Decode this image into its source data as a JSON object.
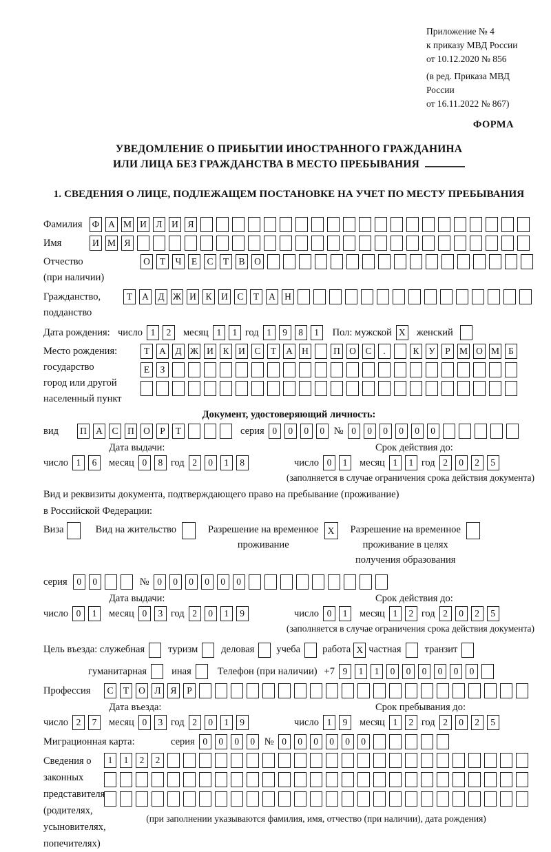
{
  "meta": {
    "appendix_line1": "Приложение № 4",
    "appendix_line2": "к приказу МВД России",
    "appendix_line3": "от 10.12.2020 № 856",
    "edition_line1": "(в ред. Приказа МВД России",
    "edition_line2": "от 16.11.2022 № 867)",
    "forma": "ФОРМА"
  },
  "title": {
    "line1": "УВЕДОМЛЕНИЕ О ПРИБЫТИИ ИНОСТРАННОГО ГРАЖДАНИНА",
    "line2": "ИЛИ ЛИЦА БЕЗ ГРАЖДАНСТВА В МЕСТО ПРЕБЫВАНИЯ"
  },
  "section1_heading": "1. СВЕДЕНИЯ О ЛИЦЕ, ПОДЛЕЖАЩЕМ ПОСТАНОВКЕ НА УЧЕТ ПО МЕСТУ ПРЕБЫВАНИЯ",
  "labels": {
    "surname": "Фамилия",
    "name": "Имя",
    "patronymic1": "Отчество",
    "patronymic2": "(при наличии)",
    "citizenship1": "Гражданство,",
    "citizenship2": "подданство",
    "birth_date": "Дата рождения:",
    "day": "число",
    "month": "месяц",
    "year": "год",
    "sex_male": "Пол: мужской",
    "sex_female": "женский",
    "birth_place1": "Место рождения:",
    "birth_place2": "государство",
    "birth_place3": "город или другой",
    "birth_place4": "населенный пункт",
    "identity_doc_heading": "Документ, удостоверяющий личность:",
    "kind": "вид",
    "series": "серия",
    "number_sign": "№",
    "issue_date": "Дата выдачи:",
    "valid_until": "Срок действия до:",
    "validity_note": "(заполняется в случае ограничения срока действия документа)",
    "right_doc_line1": "Вид и реквизиты документа, подтверждающего право на пребывание (проживание)",
    "right_doc_line2": "в Российской Федерации:",
    "visa": "Виза",
    "residence_permit": "Вид на жительство",
    "temp_res_line1": "Разрешение на временное",
    "temp_res_line2": "проживание",
    "temp_edu_line1": "Разрешение на временное",
    "temp_edu_line2": "проживание в целях",
    "temp_edu_line3": "получения образования",
    "purpose": "Цель въезда: служебная",
    "tourism": "туризм",
    "business": "деловая",
    "study": "учеба",
    "work": "работа",
    "private": "частная",
    "transit": "транзит",
    "humanitarian": "гуманитарная",
    "other": "иная",
    "phone": "Телефон (при наличии)",
    "phone_prefix": "+7",
    "profession": "Профессия",
    "entry_date": "Дата въезда:",
    "stay_until": "Срок пребывания до:",
    "migration_card": "Миграционная карта:",
    "legal1": "Сведения о",
    "legal2": "законных",
    "legal3": "представителях",
    "legal4": "(родителях,",
    "legal5": "усыновителях,",
    "legal6": "попечителях)",
    "legal_note": "(при заполнении указываются фамилия, имя, отчество (при наличии), дата рождения)"
  },
  "boxes": {
    "surname": {
      "value": "ФАМИЛИЯ",
      "count": 28
    },
    "name": {
      "value": "ИМЯ",
      "count": 28
    },
    "patronymic": {
      "value": "ОТЧЕСТВО",
      "count": 25
    },
    "citizenship": {
      "value": "ТАДЖИКИСТАН",
      "count": 26
    },
    "birth_day": {
      "value": "12",
      "count": 2
    },
    "birth_month": {
      "value": "11",
      "count": 2
    },
    "birth_year": {
      "value": "1981",
      "count": 4
    },
    "sex_male": {
      "value": "X",
      "count": 1
    },
    "sex_female": {
      "value": "",
      "count": 1
    },
    "birth_place_row1": {
      "value": "ТАДЖИКИСТАН ПОС. КУРМОМБ",
      "count": 24
    },
    "birth_place_row2": {
      "value": "ЕЗ",
      "count": 24
    },
    "birth_place_row3": {
      "value": "",
      "count": 24
    },
    "id_kind": {
      "value": "ПАСПОРТ",
      "count": 10
    },
    "id_series": {
      "value": "0000",
      "count": 4
    },
    "id_number": {
      "value": "000000",
      "count": 11
    },
    "id_issue_day": {
      "value": "16",
      "count": 2
    },
    "id_issue_month": {
      "value": "08",
      "count": 2
    },
    "id_issue_year": {
      "value": "2018",
      "count": 4
    },
    "id_valid_day": {
      "value": "01",
      "count": 2
    },
    "id_valid_month": {
      "value": "11",
      "count": 2
    },
    "id_valid_year": {
      "value": "2025",
      "count": 4
    },
    "visa_cb": {
      "value": "",
      "count": 1
    },
    "residence_permit_cb": {
      "value": "",
      "count": 1
    },
    "temp_res_cb": {
      "value": "X",
      "count": 1
    },
    "temp_edu_cb": {
      "value": "",
      "count": 1
    },
    "doc_series": {
      "value": "00",
      "count": 4
    },
    "doc_number": {
      "value": "000000",
      "count": 15
    },
    "doc_issue_day": {
      "value": "01",
      "count": 2
    },
    "doc_issue_month": {
      "value": "03",
      "count": 2
    },
    "doc_issue_year": {
      "value": "2019",
      "count": 4
    },
    "doc_valid_day": {
      "value": "01",
      "count": 2
    },
    "doc_valid_month": {
      "value": "12",
      "count": 2
    },
    "doc_valid_year": {
      "value": "2025",
      "count": 4
    },
    "purpose_official": {
      "value": "",
      "count": 1
    },
    "purpose_tourism": {
      "value": "",
      "count": 1
    },
    "purpose_business": {
      "value": "",
      "count": 1
    },
    "purpose_study": {
      "value": "",
      "count": 1
    },
    "purpose_work": {
      "value": "X",
      "count": 1
    },
    "purpose_private": {
      "value": "",
      "count": 1
    },
    "purpose_transit": {
      "value": "",
      "count": 1
    },
    "purpose_humanitarian": {
      "value": "",
      "count": 1
    },
    "purpose_other": {
      "value": "",
      "count": 1
    },
    "phone": {
      "value": "911000000",
      "count": 10
    },
    "profession": {
      "value": "СТОЛЯР",
      "count": 27
    },
    "entry_day": {
      "value": "27",
      "count": 2
    },
    "entry_month": {
      "value": "03",
      "count": 2
    },
    "entry_year": {
      "value": "2019",
      "count": 4
    },
    "stay_day": {
      "value": "19",
      "count": 2
    },
    "stay_month": {
      "value": "12",
      "count": 2
    },
    "stay_year": {
      "value": "2025",
      "count": 4
    },
    "mig_series": {
      "value": "0000",
      "count": 4
    },
    "mig_number": {
      "value": "000000",
      "count": 11
    },
    "legal_row1": {
      "value": "1122",
      "count": 27
    },
    "legal_row2": {
      "value": "",
      "count": 27
    },
    "legal_row3": {
      "value": "",
      "count": 27
    }
  }
}
